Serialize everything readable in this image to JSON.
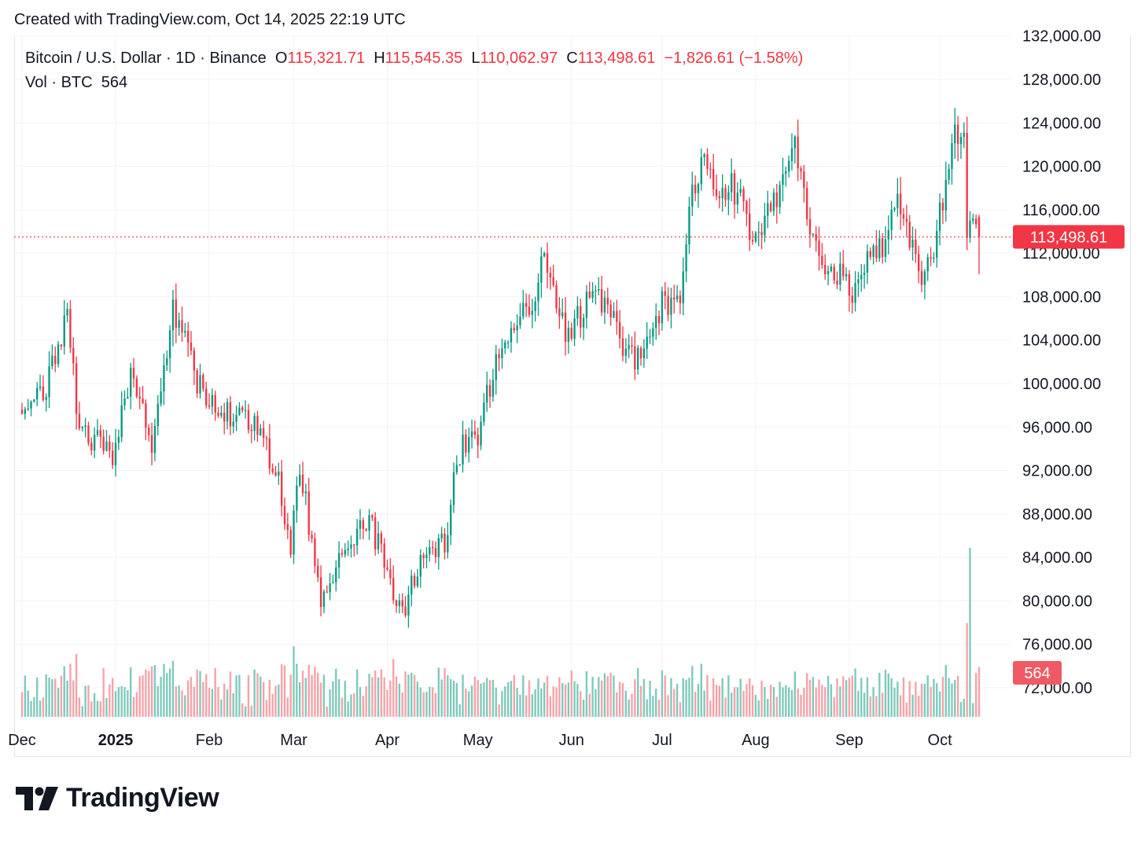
{
  "header": {
    "created": "Created with TradingView.com, Oct 14, 2025 22:19 UTC"
  },
  "legend": {
    "symbol": "Bitcoin / U.S. Dollar · 1D · Binance",
    "o_label": "O",
    "o_value": "115,321.71",
    "h_label": "H",
    "h_value": "115,545.35",
    "l_label": "L",
    "l_value": "110,062.97",
    "c_label": "C",
    "c_value": "113,498.61",
    "change": "−1,826.61 (−1.58%)",
    "vol_label": "Vol · BTC",
    "vol_value": "564"
  },
  "brand": {
    "name": "TradingView",
    "logo": "tradingview-logo-icon"
  },
  "colors": {
    "up": "#089981",
    "down": "#f23645",
    "up_vol": "#7fc9bc",
    "down_vol": "#f5a3a9",
    "grid": "#f0f3fa",
    "text": "#131722"
  },
  "chart_data": {
    "type": "candlestick",
    "y_ticks": [
      "72,000.00",
      "76,000.00",
      "80,000.00",
      "84,000.00",
      "88,000.00",
      "92,000.00",
      "96,000.00",
      "100,000.00",
      "104,000.00",
      "108,000.00",
      "112,000.00",
      "116,000.00",
      "120,000.00",
      "124,000.00",
      "128,000.00",
      "132,000.00"
    ],
    "y_tick_values": [
      72000,
      76000,
      80000,
      84000,
      88000,
      92000,
      96000,
      100000,
      104000,
      108000,
      112000,
      116000,
      120000,
      124000,
      128000,
      132000
    ],
    "ylim": [
      69000,
      132500
    ],
    "x_ticks": [
      {
        "label": "Dec",
        "date": "2024-12-01",
        "bold": false
      },
      {
        "label": "2025",
        "date": "2025-01-01",
        "bold": true
      },
      {
        "label": "Feb",
        "date": "2025-02-01",
        "bold": false
      },
      {
        "label": "Mar",
        "date": "2025-03-01",
        "bold": false
      },
      {
        "label": "Apr",
        "date": "2025-04-01",
        "bold": false
      },
      {
        "label": "May",
        "date": "2025-05-01",
        "bold": false
      },
      {
        "label": "Jun",
        "date": "2025-06-01",
        "bold": false
      },
      {
        "label": "Jul",
        "date": "2025-07-01",
        "bold": false
      },
      {
        "label": "Aug",
        "date": "2025-08-01",
        "bold": false
      },
      {
        "label": "Sep",
        "date": "2025-09-01",
        "bold": false
      },
      {
        "label": "Oct",
        "date": "2025-10-01",
        "bold": false
      }
    ],
    "xlim": [
      "2024-12-01",
      "2025-10-14"
    ],
    "current_price": 113498.61,
    "current_price_label": "113,498.61",
    "current_volume_label": "564",
    "close_path": [
      [
        "2024-12-01",
        97200
      ],
      [
        "2024-12-08",
        99000
      ],
      [
        "2024-12-16",
        106000
      ],
      [
        "2024-12-20",
        96000
      ],
      [
        "2024-12-31",
        93500
      ],
      [
        "2025-01-06",
        101500
      ],
      [
        "2025-01-13",
        94500
      ],
      [
        "2025-01-20",
        107000
      ],
      [
        "2025-01-27",
        101000
      ],
      [
        "2025-02-03",
        97500
      ],
      [
        "2025-02-17",
        96000
      ],
      [
        "2025-02-24",
        91500
      ],
      [
        "2025-02-28",
        84500
      ],
      [
        "2025-03-03",
        92500
      ],
      [
        "2025-03-10",
        80000
      ],
      [
        "2025-03-20",
        85500
      ],
      [
        "2025-03-26",
        87500
      ],
      [
        "2025-04-06",
        78500
      ],
      [
        "2025-04-12",
        84000
      ],
      [
        "2025-04-21",
        85500
      ],
      [
        "2025-04-24",
        93500
      ],
      [
        "2025-05-01",
        95500
      ],
      [
        "2025-05-08",
        103500
      ],
      [
        "2025-05-21",
        108500
      ],
      [
        "2025-05-22",
        111500
      ],
      [
        "2025-05-31",
        104500
      ],
      [
        "2025-06-09",
        109000
      ],
      [
        "2025-06-22",
        101500
      ],
      [
        "2025-06-30",
        107000
      ],
      [
        "2025-07-07",
        108500
      ],
      [
        "2025-07-11",
        117500
      ],
      [
        "2025-07-14",
        120000
      ],
      [
        "2025-07-25",
        117500
      ],
      [
        "2025-08-02",
        113000
      ],
      [
        "2025-08-10",
        119500
      ],
      [
        "2025-08-14",
        122500
      ],
      [
        "2025-08-19",
        113500
      ],
      [
        "2025-08-25",
        111000
      ],
      [
        "2025-09-01",
        108500
      ],
      [
        "2025-09-09",
        111500
      ],
      [
        "2025-09-17",
        116000
      ],
      [
        "2025-09-22",
        112500
      ],
      [
        "2025-09-26",
        109000
      ],
      [
        "2025-09-30",
        114000
      ],
      [
        "2025-10-06",
        124500
      ],
      [
        "2025-10-09",
        121500
      ],
      [
        "2025-10-10",
        113200
      ],
      [
        "2025-10-12",
        115300
      ],
      [
        "2025-10-14",
        113498.61
      ]
    ]
  }
}
